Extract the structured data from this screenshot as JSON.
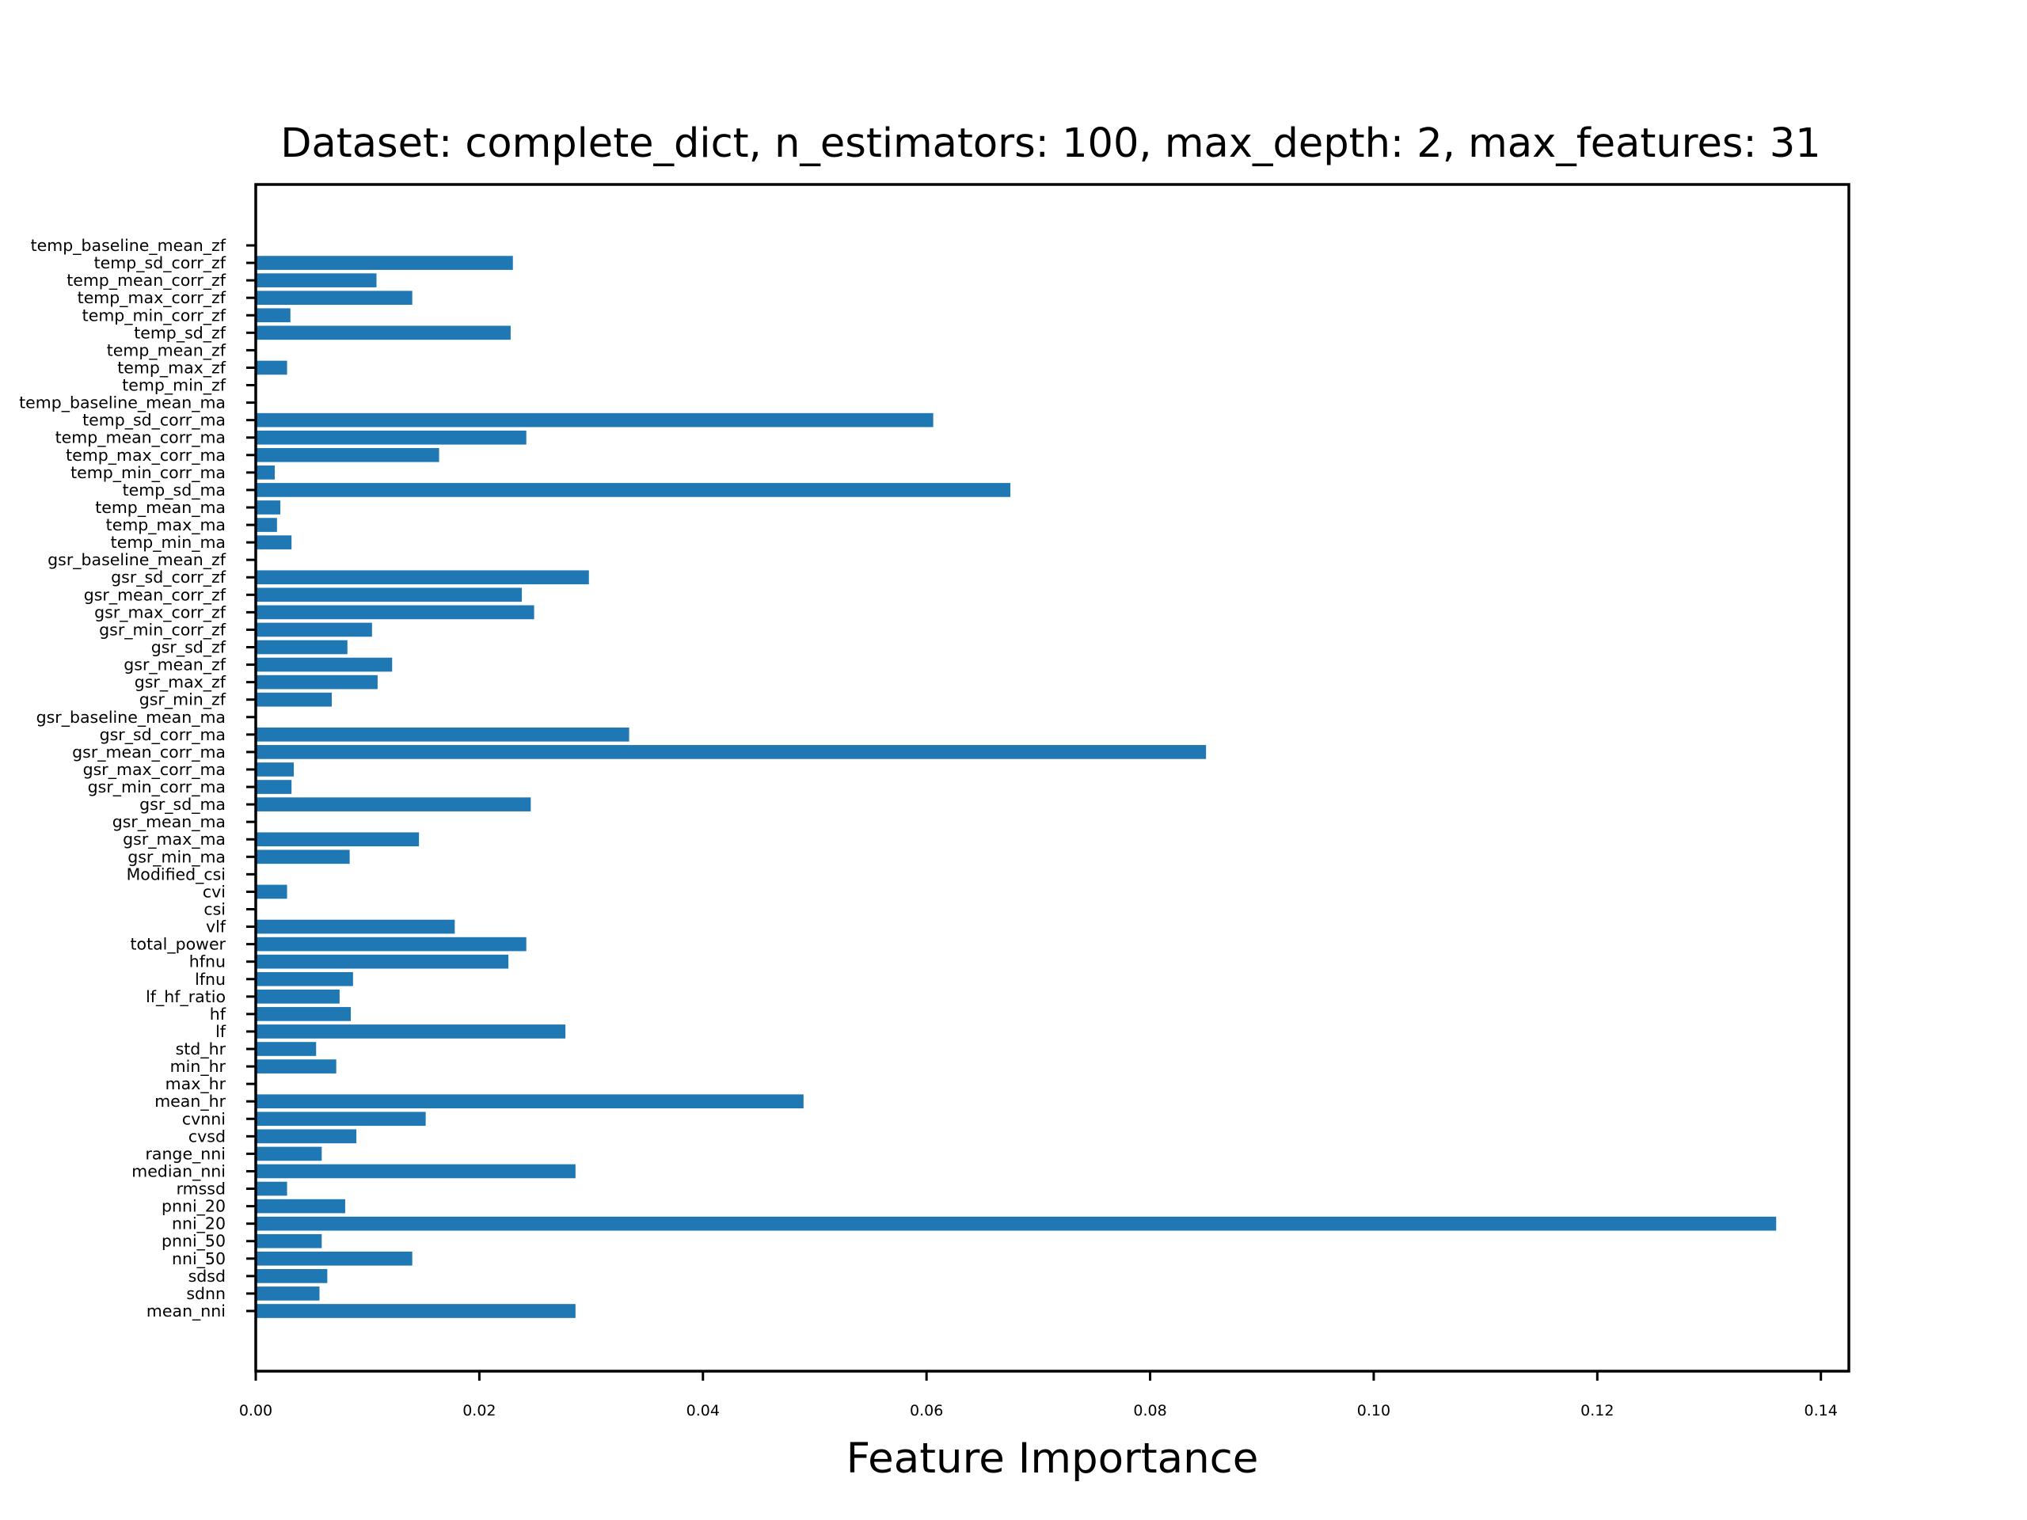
{
  "chart_data": {
    "type": "bar",
    "orientation": "horizontal",
    "title": "Dataset: complete_dict, n_estimators: 100, max_depth: 2, max_features: 31",
    "xlabel": "Feature Importance",
    "ylabel": "",
    "xlim": [
      0,
      0.1425
    ],
    "xticks": [
      0.0,
      0.02,
      0.04,
      0.06,
      0.08,
      0.1,
      0.12,
      0.14
    ],
    "xtick_labels": [
      "0.00",
      "0.02",
      "0.04",
      "0.06",
      "0.08",
      "0.10",
      "0.12",
      "0.14"
    ],
    "grid": false,
    "bar_color": "#1f77b4",
    "categories": [
      "mean_nni",
      "sdnn",
      "sdsd",
      "nni_50",
      "pnni_50",
      "nni_20",
      "pnni_20",
      "rmssd",
      "median_nni",
      "range_nni",
      "cvsd",
      "cvnni",
      "mean_hr",
      "max_hr",
      "min_hr",
      "std_hr",
      "lf",
      "hf",
      "lf_hf_ratio",
      "lfnu",
      "hfnu",
      "total_power",
      "vlf",
      "csi",
      "cvi",
      "Modified_csi",
      "gsr_min_ma",
      "gsr_max_ma",
      "gsr_mean_ma",
      "gsr_sd_ma",
      "gsr_min_corr_ma",
      "gsr_max_corr_ma",
      "gsr_mean_corr_ma",
      "gsr_sd_corr_ma",
      "gsr_baseline_mean_ma",
      "gsr_min_zf",
      "gsr_max_zf",
      "gsr_mean_zf",
      "gsr_sd_zf",
      "gsr_min_corr_zf",
      "gsr_max_corr_zf",
      "gsr_mean_corr_zf",
      "gsr_sd_corr_zf",
      "gsr_baseline_mean_zf",
      "temp_min_ma",
      "temp_max_ma",
      "temp_mean_ma",
      "temp_sd_ma",
      "temp_min_corr_ma",
      "temp_max_corr_ma",
      "temp_mean_corr_ma",
      "temp_sd_corr_ma",
      "temp_baseline_mean_ma",
      "temp_min_zf",
      "temp_max_zf",
      "temp_mean_zf",
      "temp_sd_zf",
      "temp_min_corr_zf",
      "temp_max_corr_zf",
      "temp_mean_corr_zf",
      "temp_sd_corr_zf",
      "temp_baseline_mean_zf"
    ],
    "values": [
      0.0286,
      0.0057,
      0.0064,
      0.014,
      0.0059,
      0.136,
      0.008,
      0.0028,
      0.0286,
      0.0059,
      0.009,
      0.0152,
      0.049,
      0.0,
      0.0072,
      0.0054,
      0.0277,
      0.0085,
      0.0075,
      0.0087,
      0.0226,
      0.0242,
      0.0178,
      0.0,
      0.0028,
      0.0,
      0.0084,
      0.0146,
      0.0,
      0.0246,
      0.0032,
      0.0034,
      0.085,
      0.0334,
      0.0,
      0.0068,
      0.0109,
      0.0122,
      0.0082,
      0.0104,
      0.0249,
      0.0238,
      0.0298,
      0.0,
      0.0032,
      0.0019,
      0.0022,
      0.0675,
      0.0017,
      0.0164,
      0.0242,
      0.0606,
      0.0,
      0.0,
      0.0028,
      0.0,
      0.0228,
      0.0031,
      0.014,
      0.0108,
      0.023,
      0.0
    ]
  }
}
